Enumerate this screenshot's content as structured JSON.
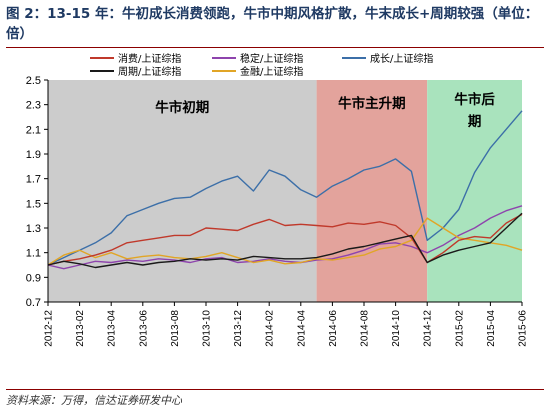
{
  "header": {
    "figure_label": "图 2：",
    "title_bold": "13-15",
    "title_rest": " 年：牛初成长消费领跑，牛市中期风格扩散，牛末成长+周期较强（单位：倍）"
  },
  "footer": {
    "source": "资料来源：万得，信达证券研发中心"
  },
  "colors": {
    "consumption": "#c0392b",
    "cyclical": "#1a1a1a",
    "stable": "#8e44ad",
    "finance": "#e1a526",
    "growth": "#3c6fa8",
    "phase_early": "#cccccc",
    "phase_main": "#e3a39c",
    "phase_late": "#a9e3bd"
  },
  "chart_data": {
    "type": "line",
    "title": "",
    "xlabel": "",
    "ylabel": "",
    "ylim": [
      0.7,
      2.5
    ],
    "yticks": [
      "0.7",
      "0.9",
      "1.1",
      "1.3",
      "1.5",
      "1.7",
      "1.9",
      "2.1",
      "2.3",
      "2.5"
    ],
    "x_labels": [
      "2012-12",
      "2013-02",
      "2013-04",
      "2013-06",
      "2013-08",
      "2013-10",
      "2013-12",
      "2014-02",
      "2014-04",
      "2014-06",
      "2014-08",
      "2014-10",
      "2014-12",
      "2015-02",
      "2015-04",
      "2015-06"
    ],
    "x_range": [
      "2012-12",
      "2015-06"
    ],
    "grid": false,
    "legend_position": "top",
    "phases": [
      {
        "label": "牛市初期",
        "start": "2012-12",
        "end": "2014-05",
        "color_key": "phase_early"
      },
      {
        "label": "牛市主升期",
        "start": "2014-05",
        "end": "2014-12",
        "color_key": "phase_main"
      },
      {
        "label": "牛市后期",
        "start": "2014-12",
        "end": "2015-06",
        "color_key": "phase_late"
      }
    ],
    "series": [
      {
        "name": "消费/上证综指",
        "color_key": "consumption",
        "points": [
          [
            "2012-12",
            1.0
          ],
          [
            "2013-01",
            1.03
          ],
          [
            "2013-02",
            1.05
          ],
          [
            "2013-03",
            1.08
          ],
          [
            "2013-04",
            1.12
          ],
          [
            "2013-05",
            1.18
          ],
          [
            "2013-06",
            1.2
          ],
          [
            "2013-07",
            1.22
          ],
          [
            "2013-08",
            1.24
          ],
          [
            "2013-09",
            1.24
          ],
          [
            "2013-10",
            1.3
          ],
          [
            "2013-11",
            1.29
          ],
          [
            "2013-12",
            1.28
          ],
          [
            "2014-01",
            1.33
          ],
          [
            "2014-02",
            1.37
          ],
          [
            "2014-03",
            1.32
          ],
          [
            "2014-04",
            1.33
          ],
          [
            "2014-05",
            1.32
          ],
          [
            "2014-06",
            1.31
          ],
          [
            "2014-07",
            1.34
          ],
          [
            "2014-08",
            1.33
          ],
          [
            "2014-09",
            1.35
          ],
          [
            "2014-10",
            1.32
          ],
          [
            "2014-11",
            1.22
          ],
          [
            "2014-12",
            1.02
          ],
          [
            "2015-01",
            1.1
          ],
          [
            "2015-02",
            1.2
          ],
          [
            "2015-03",
            1.23
          ],
          [
            "2015-04",
            1.22
          ],
          [
            "2015-05",
            1.34
          ],
          [
            "2015-06",
            1.41
          ]
        ]
      },
      {
        "name": "周期/上证综指",
        "color_key": "cyclical",
        "points": [
          [
            "2012-12",
            1.0
          ],
          [
            "2013-01",
            1.03
          ],
          [
            "2013-02",
            1.01
          ],
          [
            "2013-03",
            0.98
          ],
          [
            "2013-04",
            1.0
          ],
          [
            "2013-05",
            1.02
          ],
          [
            "2013-06",
            1.0
          ],
          [
            "2013-07",
            1.02
          ],
          [
            "2013-08",
            1.03
          ],
          [
            "2013-09",
            1.05
          ],
          [
            "2013-10",
            1.04
          ],
          [
            "2013-11",
            1.05
          ],
          [
            "2013-12",
            1.04
          ],
          [
            "2014-01",
            1.07
          ],
          [
            "2014-02",
            1.06
          ],
          [
            "2014-03",
            1.05
          ],
          [
            "2014-04",
            1.05
          ],
          [
            "2014-05",
            1.06
          ],
          [
            "2014-06",
            1.09
          ],
          [
            "2014-07",
            1.13
          ],
          [
            "2014-08",
            1.15
          ],
          [
            "2014-09",
            1.18
          ],
          [
            "2014-10",
            1.21
          ],
          [
            "2014-11",
            1.24
          ],
          [
            "2014-12",
            1.02
          ],
          [
            "2015-01",
            1.08
          ],
          [
            "2015-02",
            1.12
          ],
          [
            "2015-03",
            1.15
          ],
          [
            "2015-04",
            1.18
          ],
          [
            "2015-05",
            1.3
          ],
          [
            "2015-06",
            1.42
          ]
        ]
      },
      {
        "name": "稳定/上证综指",
        "color_key": "stable",
        "points": [
          [
            "2012-12",
            1.0
          ],
          [
            "2013-01",
            0.97
          ],
          [
            "2013-02",
            1.0
          ],
          [
            "2013-03",
            1.03
          ],
          [
            "2013-04",
            1.02
          ],
          [
            "2013-05",
            1.04
          ],
          [
            "2013-06",
            1.03
          ],
          [
            "2013-07",
            1.05
          ],
          [
            "2013-08",
            1.04
          ],
          [
            "2013-09",
            1.02
          ],
          [
            "2013-10",
            1.05
          ],
          [
            "2013-11",
            1.06
          ],
          [
            "2013-12",
            1.02
          ],
          [
            "2014-01",
            1.03
          ],
          [
            "2014-02",
            1.05
          ],
          [
            "2014-03",
            1.03
          ],
          [
            "2014-04",
            1.02
          ],
          [
            "2014-05",
            1.04
          ],
          [
            "2014-06",
            1.05
          ],
          [
            "2014-07",
            1.08
          ],
          [
            "2014-08",
            1.12
          ],
          [
            "2014-09",
            1.17
          ],
          [
            "2014-10",
            1.18
          ],
          [
            "2014-11",
            1.15
          ],
          [
            "2014-12",
            1.1
          ],
          [
            "2015-01",
            1.16
          ],
          [
            "2015-02",
            1.24
          ],
          [
            "2015-03",
            1.3
          ],
          [
            "2015-04",
            1.38
          ],
          [
            "2015-05",
            1.44
          ],
          [
            "2015-06",
            1.48
          ]
        ]
      },
      {
        "name": "金融/上证综指",
        "color_key": "finance",
        "points": [
          [
            "2012-12",
            1.0
          ],
          [
            "2013-01",
            1.08
          ],
          [
            "2013-02",
            1.12
          ],
          [
            "2013-03",
            1.06
          ],
          [
            "2013-04",
            1.1
          ],
          [
            "2013-05",
            1.05
          ],
          [
            "2013-06",
            1.07
          ],
          [
            "2013-07",
            1.08
          ],
          [
            "2013-08",
            1.06
          ],
          [
            "2013-09",
            1.05
          ],
          [
            "2013-10",
            1.07
          ],
          [
            "2013-11",
            1.1
          ],
          [
            "2013-12",
            1.06
          ],
          [
            "2014-01",
            1.02
          ],
          [
            "2014-02",
            1.04
          ],
          [
            "2014-03",
            1.01
          ],
          [
            "2014-04",
            1.02
          ],
          [
            "2014-05",
            1.05
          ],
          [
            "2014-06",
            1.04
          ],
          [
            "2014-07",
            1.06
          ],
          [
            "2014-08",
            1.08
          ],
          [
            "2014-09",
            1.13
          ],
          [
            "2014-10",
            1.15
          ],
          [
            "2014-11",
            1.2
          ],
          [
            "2014-12",
            1.38
          ],
          [
            "2015-01",
            1.3
          ],
          [
            "2015-02",
            1.22
          ],
          [
            "2015-03",
            1.2
          ],
          [
            "2015-04",
            1.18
          ],
          [
            "2015-05",
            1.16
          ],
          [
            "2015-06",
            1.12
          ]
        ]
      },
      {
        "name": "成长/上证综指",
        "color_key": "growth",
        "points": [
          [
            "2012-12",
            1.0
          ],
          [
            "2013-01",
            1.06
          ],
          [
            "2013-02",
            1.12
          ],
          [
            "2013-03",
            1.18
          ],
          [
            "2013-04",
            1.26
          ],
          [
            "2013-05",
            1.4
          ],
          [
            "2013-06",
            1.45
          ],
          [
            "2013-07",
            1.5
          ],
          [
            "2013-08",
            1.54
          ],
          [
            "2013-09",
            1.55
          ],
          [
            "2013-10",
            1.62
          ],
          [
            "2013-11",
            1.68
          ],
          [
            "2013-12",
            1.72
          ],
          [
            "2014-01",
            1.6
          ],
          [
            "2014-02",
            1.77
          ],
          [
            "2014-03",
            1.72
          ],
          [
            "2014-04",
            1.61
          ],
          [
            "2014-05",
            1.55
          ],
          [
            "2014-06",
            1.64
          ],
          [
            "2014-07",
            1.7
          ],
          [
            "2014-08",
            1.77
          ],
          [
            "2014-09",
            1.8
          ],
          [
            "2014-10",
            1.86
          ],
          [
            "2014-11",
            1.76
          ],
          [
            "2014-12",
            1.2
          ],
          [
            "2015-01",
            1.3
          ],
          [
            "2015-02",
            1.45
          ],
          [
            "2015-03",
            1.75
          ],
          [
            "2015-04",
            1.95
          ],
          [
            "2015-05",
            2.1
          ],
          [
            "2015-06",
            2.25
          ]
        ]
      }
    ]
  }
}
